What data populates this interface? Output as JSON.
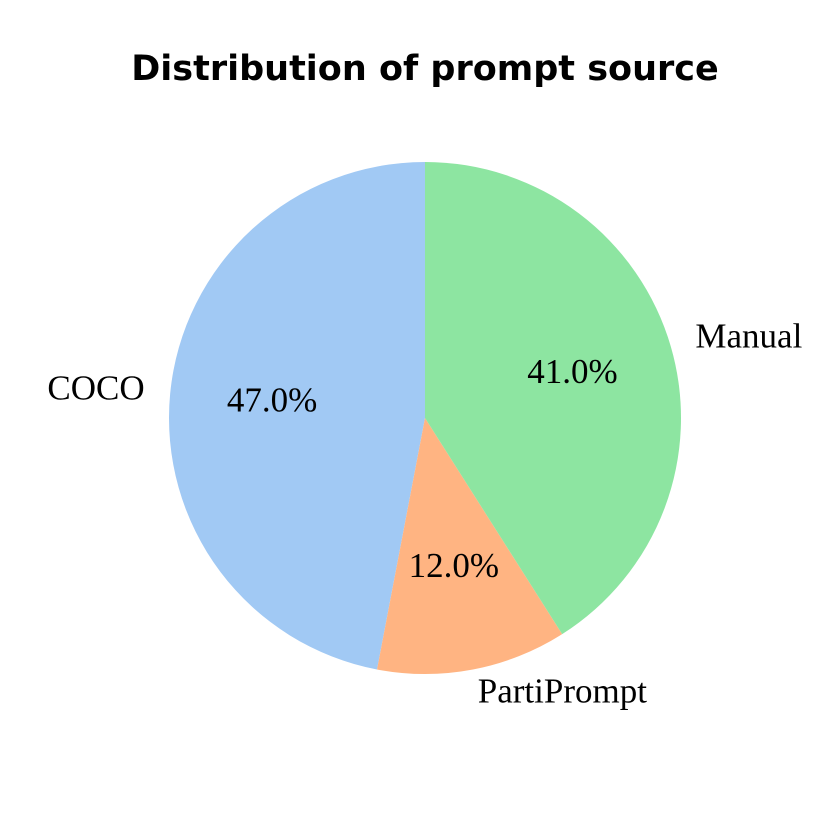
{
  "chart_data": {
    "type": "pie",
    "title": "Distribution of prompt source",
    "categories": [
      "COCO",
      "PartiPrompt",
      "Manual"
    ],
    "values": [
      47.0,
      12.0,
      41.0
    ],
    "value_labels": [
      "47.0%",
      "12.0%",
      "41.0%"
    ],
    "colors": [
      "#a1c9f4",
      "#ffb482",
      "#8de5a1"
    ]
  }
}
